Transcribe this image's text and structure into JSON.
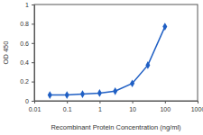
{
  "chart_data": {
    "type": "line",
    "x_label": "Recombinant Protein Concentration (ng/ml)",
    "y_label": "OD 450",
    "x": [
      0.03,
      0.1,
      0.3,
      1,
      3,
      10,
      30,
      100
    ],
    "values": [
      0.06,
      0.06,
      0.07,
      0.08,
      0.1,
      0.18,
      0.37,
      0.77
    ],
    "color": "#1f5fc4",
    "marker": "diamond",
    "log": "x",
    "grid": false,
    "xlim": [
      0.01,
      1000
    ],
    "xticks": [
      0.01,
      0.1,
      1,
      10,
      100,
      1000
    ],
    "ylim": [
      0,
      1
    ],
    "yticks": [
      0,
      0.2,
      0.4,
      0.6,
      0.8,
      1
    ]
  }
}
